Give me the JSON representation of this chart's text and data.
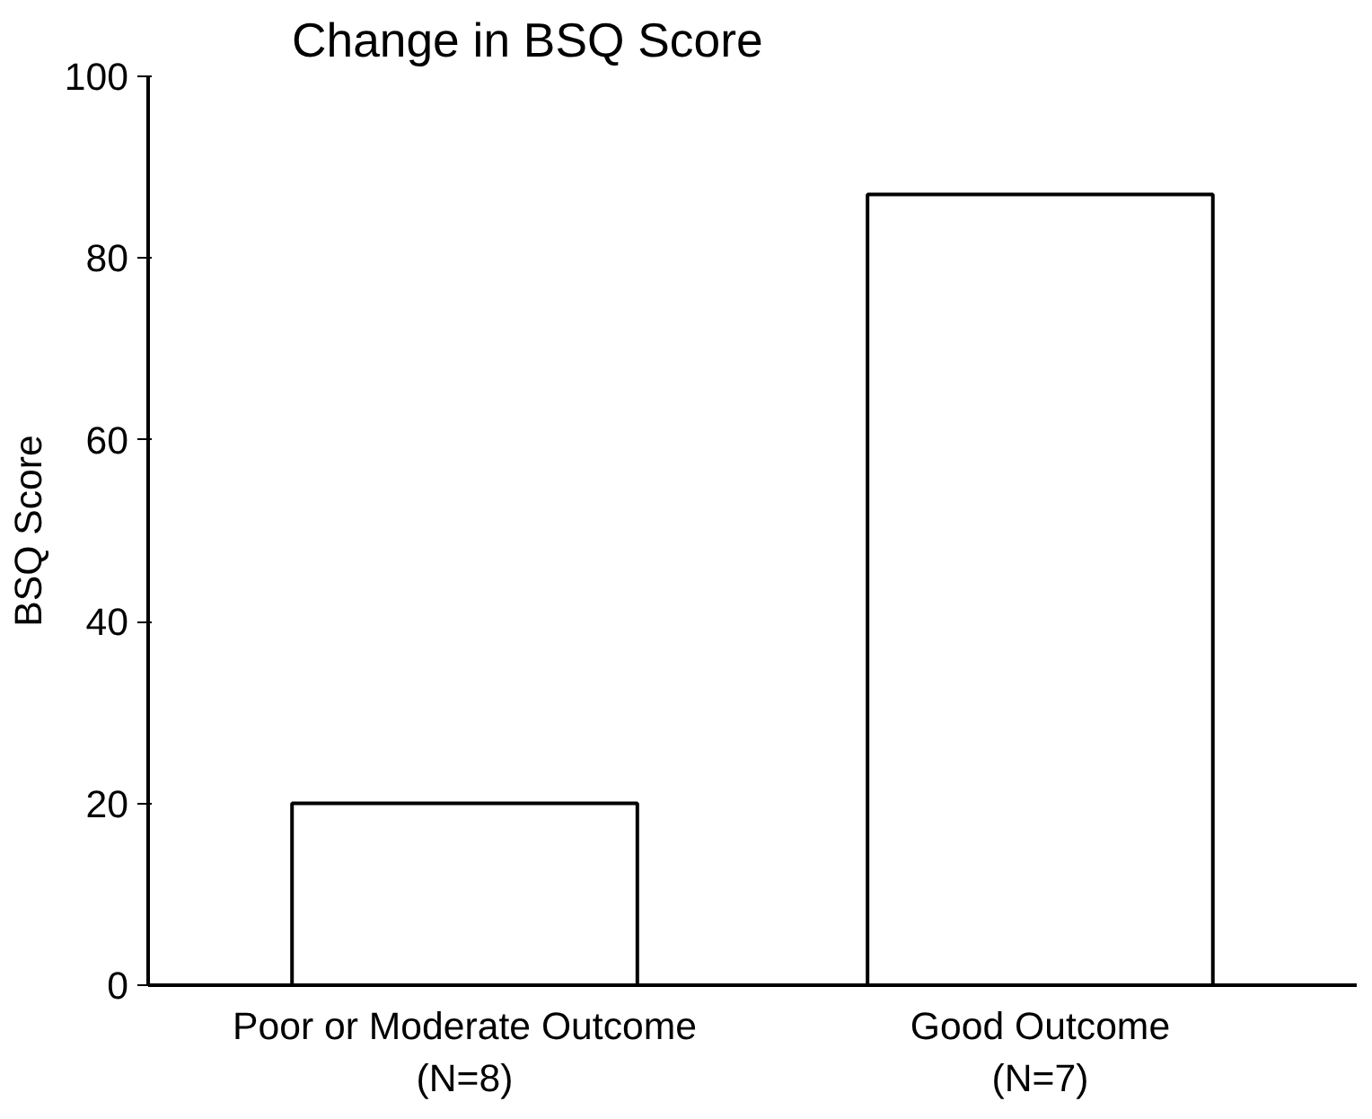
{
  "chart_data": {
    "type": "bar",
    "title": "Change in BSQ Score",
    "ylabel": "BSQ Score",
    "categories": [
      "Poor or Moderate Outcome\n(N=8)",
      "Good Outcome\n(N=7)"
    ],
    "values": [
      20,
      87
    ],
    "color": "#ffffff",
    "ylim": [
      0,
      100
    ],
    "yticks": [
      0,
      20,
      40,
      60,
      80,
      100
    ],
    "grid": false
  }
}
